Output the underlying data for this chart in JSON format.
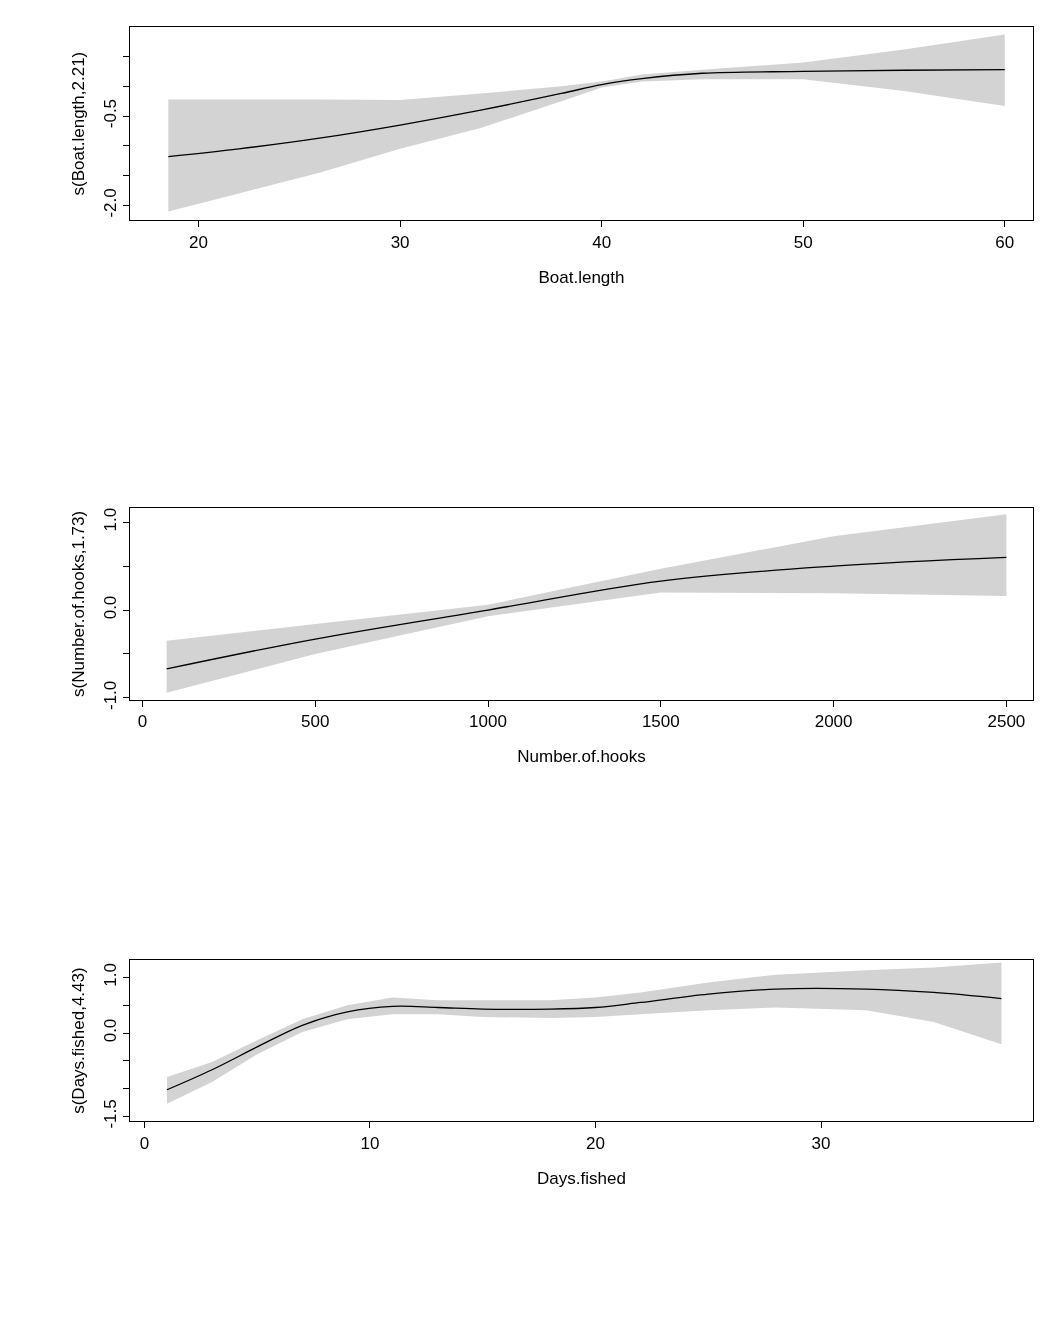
{
  "chart_data": [
    {
      "type": "line",
      "xlabel": "Boat.length",
      "ylabel": "s(Boat.length,2.21)",
      "xlim": [
        16.6,
        61.4
      ],
      "ylim": [
        -2.25,
        1.0
      ],
      "xticks": [
        20,
        30,
        40,
        50,
        60
      ],
      "yticks": [
        {
          "value": -2.0,
          "label": "-2.0"
        },
        {
          "value": -1.5,
          "label": null
        },
        {
          "value": -1.0,
          "label": null
        },
        -0.5,
        {
          "value": 0.0,
          "label": null
        },
        {
          "value": 0.5,
          "label": null
        }
      ],
      "marker": "none",
      "line_style": "solid",
      "series": [
        {
          "color": "#000000",
          "x": [
            18.5,
            22,
            26,
            30,
            34,
            38,
            40,
            42,
            45,
            50,
            55,
            60
          ],
          "values": [
            -1.18,
            -1.05,
            -0.87,
            -0.65,
            -0.4,
            -0.12,
            0.03,
            0.13,
            0.22,
            0.25,
            0.27,
            0.28
          ],
          "lower": [
            -2.1,
            -1.8,
            -1.45,
            -1.05,
            -0.7,
            -0.25,
            -0.02,
            0.08,
            0.12,
            0.12,
            -0.08,
            -0.33
          ],
          "upper": [
            -0.22,
            -0.22,
            -0.22,
            -0.23,
            -0.12,
            0.0,
            0.08,
            0.2,
            0.28,
            0.4,
            0.62,
            0.87
          ]
        }
      ]
    },
    {
      "type": "line",
      "xlabel": "Number.of.hooks",
      "ylabel": "s(Number.of.hooks,1.73)",
      "xlim": [
        -36,
        2577
      ],
      "ylim": [
        -1.02,
        1.16
      ],
      "xticks": [
        0,
        500,
        1000,
        1500,
        2000,
        2500
      ],
      "yticks": [
        {
          "value": -1.0,
          "label": "-1.0"
        },
        {
          "value": -0.5,
          "label": null
        },
        {
          "value": 0.0,
          "label": "0.0"
        },
        {
          "value": 0.5,
          "label": null
        },
        {
          "value": 1.0,
          "label": "1.0"
        }
      ],
      "marker": "none",
      "line_style": "solid",
      "series": [
        {
          "color": "#000000",
          "x": [
            70,
            500,
            1000,
            1500,
            2000,
            2500
          ],
          "values": [
            -0.67,
            -0.33,
            0.0,
            0.33,
            0.5,
            0.6
          ],
          "lower": [
            -0.94,
            -0.5,
            -0.07,
            0.2,
            0.19,
            0.16
          ],
          "upper": [
            -0.35,
            -0.16,
            0.06,
            0.47,
            0.84,
            1.09
          ]
        }
      ]
    },
    {
      "type": "line",
      "xlabel": "Days.fished",
      "ylabel": "s(Days.fished,4.43)",
      "xlim": [
        -0.64,
        39.4
      ],
      "ylim": [
        -1.59,
        1.32
      ],
      "xticks": [
        0,
        10,
        20,
        30
      ],
      "yticks": [
        -1.5,
        {
          "value": -1.0,
          "label": null
        },
        {
          "value": -0.5,
          "label": null
        },
        {
          "value": 0.0,
          "label": "0.0"
        },
        {
          "value": 0.5,
          "label": null
        },
        {
          "value": 1.0,
          "label": "1.0"
        }
      ],
      "marker": "none",
      "line_style": "solid",
      "series": [
        {
          "color": "#000000",
          "x": [
            1,
            3,
            5,
            7,
            9,
            11,
            13,
            15,
            18,
            20,
            22,
            25,
            28,
            32,
            35,
            38
          ],
          "values": [
            -1.02,
            -0.66,
            -0.25,
            0.14,
            0.38,
            0.48,
            0.46,
            0.43,
            0.43,
            0.46,
            0.55,
            0.7,
            0.79,
            0.79,
            0.73,
            0.62
          ],
          "lower": [
            -1.27,
            -0.88,
            -0.38,
            0.02,
            0.25,
            0.34,
            0.34,
            0.29,
            0.27,
            0.29,
            0.34,
            0.41,
            0.46,
            0.41,
            0.2,
            -0.2
          ],
          "upper": [
            -0.79,
            -0.52,
            -0.13,
            0.25,
            0.5,
            0.64,
            0.59,
            0.59,
            0.59,
            0.64,
            0.73,
            0.91,
            1.05,
            1.13,
            1.18,
            1.27
          ]
        }
      ]
    }
  ]
}
